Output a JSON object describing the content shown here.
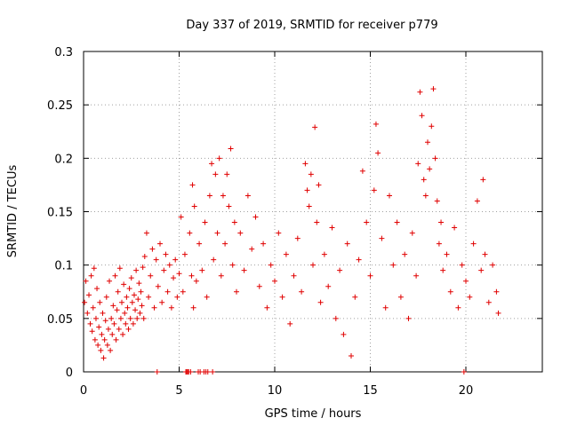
{
  "chart_data": {
    "type": "scatter",
    "title": "Day 337 of 2019, SRMTID for receiver p779",
    "xlabel": "GPS time / hours",
    "ylabel": "SRMTID / TECUs",
    "xlim": [
      0,
      24
    ],
    "ylim": [
      0,
      0.3
    ],
    "xticks": [
      0,
      5,
      10,
      15,
      20
    ],
    "yticks": [
      0,
      0.05,
      0.1,
      0.15,
      0.2,
      0.25,
      0.3
    ],
    "xtick_labels": [
      "0",
      "5",
      "10",
      "15",
      "20"
    ],
    "ytick_labels": [
      "0",
      "0.05",
      "0.1",
      "0.15",
      "0.2",
      "0.25",
      "0.3"
    ],
    "grid": true,
    "marker": "+",
    "color": "#e00000",
    "series": [
      {
        "name": "SRMTID",
        "points": [
          [
            0.05,
            0.065
          ],
          [
            0.12,
            0.085
          ],
          [
            0.2,
            0.055
          ],
          [
            0.28,
            0.072
          ],
          [
            0.35,
            0.045
          ],
          [
            0.4,
            0.09
          ],
          [
            0.45,
            0.038
          ],
          [
            0.5,
            0.06
          ],
          [
            0.55,
            0.097
          ],
          [
            0.6,
            0.03
          ],
          [
            0.65,
            0.05
          ],
          [
            0.7,
            0.078
          ],
          [
            0.75,
            0.025
          ],
          [
            0.8,
            0.042
          ],
          [
            0.85,
            0.065
          ],
          [
            0.9,
            0.02
          ],
          [
            0.95,
            0.035
          ],
          [
            1.0,
            0.055
          ],
          [
            1.05,
            0.013
          ],
          [
            1.1,
            0.03
          ],
          [
            1.15,
            0.048
          ],
          [
            1.2,
            0.07
          ],
          [
            1.25,
            0.025
          ],
          [
            1.3,
            0.04
          ],
          [
            1.35,
            0.085
          ],
          [
            1.4,
            0.02
          ],
          [
            1.45,
            0.05
          ],
          [
            1.5,
            0.035
          ],
          [
            1.55,
            0.062
          ],
          [
            1.6,
            0.045
          ],
          [
            1.65,
            0.09
          ],
          [
            1.7,
            0.03
          ],
          [
            1.75,
            0.058
          ],
          [
            1.8,
            0.075
          ],
          [
            1.85,
            0.04
          ],
          [
            1.9,
            0.097
          ],
          [
            1.95,
            0.05
          ],
          [
            2.0,
            0.065
          ],
          [
            2.05,
            0.035
          ],
          [
            2.1,
            0.082
          ],
          [
            2.15,
            0.055
          ],
          [
            2.2,
            0.045
          ],
          [
            2.25,
            0.07
          ],
          [
            2.3,
            0.06
          ],
          [
            2.35,
            0.04
          ],
          [
            2.4,
            0.078
          ],
          [
            2.45,
            0.05
          ],
          [
            2.5,
            0.088
          ],
          [
            2.55,
            0.065
          ],
          [
            2.6,
            0.045
          ],
          [
            2.65,
            0.072
          ],
          [
            2.7,
            0.058
          ],
          [
            2.75,
            0.095
          ],
          [
            2.8,
            0.05
          ],
          [
            2.85,
            0.068
          ],
          [
            2.9,
            0.083
          ],
          [
            2.95,
            0.055
          ],
          [
            3.0,
            0.075
          ],
          [
            3.05,
            0.062
          ],
          [
            3.1,
            0.098
          ],
          [
            3.15,
            0.05
          ],
          [
            3.2,
            0.108
          ],
          [
            3.3,
            0.13
          ],
          [
            3.4,
            0.07
          ],
          [
            3.5,
            0.09
          ],
          [
            3.6,
            0.115
          ],
          [
            3.7,
            0.06
          ],
          [
            3.8,
            0.105
          ],
          [
            3.85,
            0.0
          ],
          [
            3.9,
            0.08
          ],
          [
            4.0,
            0.12
          ],
          [
            4.1,
            0.065
          ],
          [
            4.2,
            0.095
          ],
          [
            4.3,
            0.11
          ],
          [
            4.4,
            0.075
          ],
          [
            4.5,
            0.1
          ],
          [
            4.6,
            0.06
          ],
          [
            4.7,
            0.088
          ],
          [
            4.8,
            0.105
          ],
          [
            4.9,
            0.07
          ],
          [
            5.0,
            0.092
          ],
          [
            5.1,
            0.145
          ],
          [
            5.2,
            0.075
          ],
          [
            5.3,
            0.11
          ],
          [
            5.35,
            0.0
          ],
          [
            5.4,
            0.0
          ],
          [
            5.45,
            0.0
          ],
          [
            5.5,
            0.0
          ],
          [
            5.55,
            0.13
          ],
          [
            5.6,
            0.0
          ],
          [
            5.65,
            0.09
          ],
          [
            5.7,
            0.175
          ],
          [
            5.75,
            0.06
          ],
          [
            5.8,
            0.155
          ],
          [
            5.9,
            0.085
          ],
          [
            6.0,
            0.0
          ],
          [
            6.05,
            0.12
          ],
          [
            6.1,
            0.0
          ],
          [
            6.2,
            0.095
          ],
          [
            6.3,
            0.0
          ],
          [
            6.35,
            0.14
          ],
          [
            6.4,
            0.0
          ],
          [
            6.45,
            0.07
          ],
          [
            6.5,
            0.0
          ],
          [
            6.6,
            0.165
          ],
          [
            6.7,
            0.195
          ],
          [
            6.75,
            0.0
          ],
          [
            6.8,
            0.105
          ],
          [
            6.9,
            0.185
          ],
          [
            7.0,
            0.13
          ],
          [
            7.1,
            0.2
          ],
          [
            7.2,
            0.09
          ],
          [
            7.3,
            0.165
          ],
          [
            7.4,
            0.12
          ],
          [
            7.5,
            0.185
          ],
          [
            7.6,
            0.155
          ],
          [
            7.7,
            0.209
          ],
          [
            7.8,
            0.1
          ],
          [
            7.9,
            0.14
          ],
          [
            8.0,
            0.075
          ],
          [
            8.2,
            0.13
          ],
          [
            8.4,
            0.095
          ],
          [
            8.6,
            0.165
          ],
          [
            8.8,
            0.115
          ],
          [
            9.0,
            0.145
          ],
          [
            9.2,
            0.08
          ],
          [
            9.4,
            0.12
          ],
          [
            9.6,
            0.06
          ],
          [
            9.8,
            0.1
          ],
          [
            10.0,
            0.085
          ],
          [
            10.2,
            0.13
          ],
          [
            10.4,
            0.07
          ],
          [
            10.6,
            0.11
          ],
          [
            10.8,
            0.045
          ],
          [
            11.0,
            0.09
          ],
          [
            11.2,
            0.125
          ],
          [
            11.4,
            0.075
          ],
          [
            11.6,
            0.195
          ],
          [
            11.7,
            0.17
          ],
          [
            11.8,
            0.155
          ],
          [
            11.9,
            0.185
          ],
          [
            12.0,
            0.1
          ],
          [
            12.1,
            0.229
          ],
          [
            12.2,
            0.14
          ],
          [
            12.3,
            0.175
          ],
          [
            12.4,
            0.065
          ],
          [
            12.6,
            0.11
          ],
          [
            12.8,
            0.08
          ],
          [
            13.0,
            0.135
          ],
          [
            13.2,
            0.05
          ],
          [
            13.4,
            0.095
          ],
          [
            13.6,
            0.035
          ],
          [
            13.8,
            0.12
          ],
          [
            14.0,
            0.015
          ],
          [
            14.2,
            0.07
          ],
          [
            14.4,
            0.105
          ],
          [
            14.6,
            0.188
          ],
          [
            14.8,
            0.14
          ],
          [
            15.0,
            0.09
          ],
          [
            15.2,
            0.17
          ],
          [
            15.3,
            0.232
          ],
          [
            15.4,
            0.205
          ],
          [
            15.6,
            0.125
          ],
          [
            15.8,
            0.06
          ],
          [
            16.0,
            0.165
          ],
          [
            16.2,
            0.1
          ],
          [
            16.4,
            0.14
          ],
          [
            16.6,
            0.07
          ],
          [
            16.8,
            0.11
          ],
          [
            17.0,
            0.05
          ],
          [
            17.2,
            0.13
          ],
          [
            17.4,
            0.09
          ],
          [
            17.5,
            0.195
          ],
          [
            17.6,
            0.262
          ],
          [
            17.7,
            0.24
          ],
          [
            17.8,
            0.18
          ],
          [
            17.9,
            0.165
          ],
          [
            18.0,
            0.215
          ],
          [
            18.1,
            0.19
          ],
          [
            18.2,
            0.23
          ],
          [
            18.3,
            0.265
          ],
          [
            18.4,
            0.2
          ],
          [
            18.5,
            0.16
          ],
          [
            18.6,
            0.12
          ],
          [
            18.7,
            0.14
          ],
          [
            18.8,
            0.095
          ],
          [
            19.0,
            0.11
          ],
          [
            19.2,
            0.075
          ],
          [
            19.4,
            0.135
          ],
          [
            19.6,
            0.06
          ],
          [
            19.8,
            0.1
          ],
          [
            19.9,
            0.0
          ],
          [
            20.0,
            0.085
          ],
          [
            20.2,
            0.07
          ],
          [
            20.4,
            0.12
          ],
          [
            20.6,
            0.16
          ],
          [
            20.8,
            0.095
          ],
          [
            20.9,
            0.18
          ],
          [
            21.0,
            0.11
          ],
          [
            21.2,
            0.065
          ],
          [
            21.4,
            0.1
          ],
          [
            21.6,
            0.075
          ],
          [
            21.7,
            0.055
          ]
        ]
      }
    ]
  }
}
